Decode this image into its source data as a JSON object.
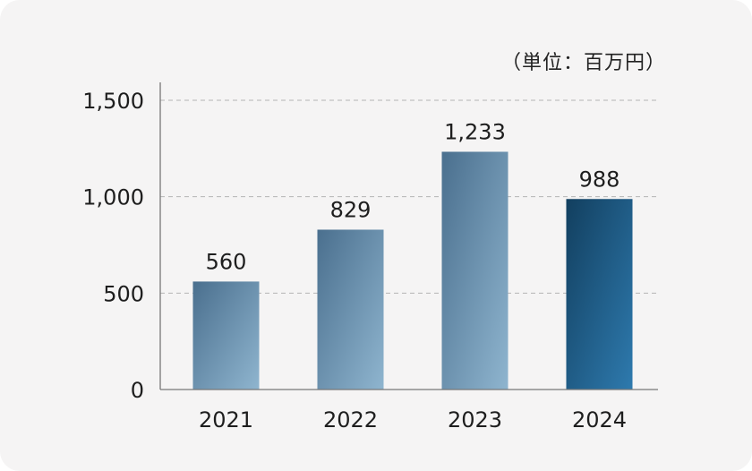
{
  "chart_data": {
    "type": "bar",
    "categories": [
      "2021",
      "2022",
      "2023",
      "2024"
    ],
    "values": [
      560,
      829,
      1233,
      988
    ],
    "value_labels": [
      "560",
      "829",
      "1,233",
      "988"
    ],
    "unit": "（単位：百万円）",
    "title": "",
    "xlabel": "",
    "ylabel": "",
    "ylim": [
      0,
      1500
    ],
    "yticks": [
      0,
      500,
      1000,
      1500
    ],
    "ytick_labels": [
      "0",
      "500",
      "1,000",
      "1,500"
    ],
    "grid": "horizontal-dashed",
    "highlight_index": 3,
    "colors": {
      "bar_light_start": "#4a6f8e",
      "bar_light_end": "#8fb5cf",
      "bar_highlight_start": "#123f5f",
      "bar_highlight_end": "#2e7aae",
      "axis": "#777777",
      "grid": "#b4b4b4"
    }
  }
}
